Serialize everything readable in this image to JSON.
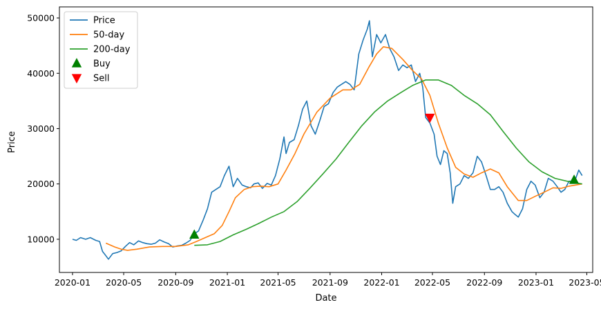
{
  "chart_data": {
    "type": "line",
    "xlabel": "Date",
    "ylabel": "Price",
    "xlim": [
      "2019-12-01",
      "2023-05-15"
    ],
    "ylim": [
      4000,
      52000
    ],
    "x_ticks": [
      "2020-01",
      "2020-05",
      "2020-09",
      "2021-01",
      "2021-05",
      "2021-09",
      "2022-01",
      "2022-05",
      "2022-09",
      "2023-01",
      "2023-05"
    ],
    "y_ticks": [
      10000,
      20000,
      30000,
      40000,
      50000
    ],
    "legend_position": "top-left",
    "series": [
      {
        "name": "Price",
        "color": "#1f77b4",
        "points": [
          [
            "2020-01-01",
            10000
          ],
          [
            "2020-01-10",
            9800
          ],
          [
            "2020-01-20",
            10300
          ],
          [
            "2020-02-01",
            10000
          ],
          [
            "2020-02-12",
            10300
          ],
          [
            "2020-02-25",
            9800
          ],
          [
            "2020-03-05",
            9600
          ],
          [
            "2020-03-12",
            7800
          ],
          [
            "2020-03-18",
            7200
          ],
          [
            "2020-03-26",
            6400
          ],
          [
            "2020-04-05",
            7400
          ],
          [
            "2020-04-15",
            7600
          ],
          [
            "2020-04-25",
            7900
          ],
          [
            "2020-05-05",
            8700
          ],
          [
            "2020-05-15",
            9400
          ],
          [
            "2020-05-25",
            9000
          ],
          [
            "2020-06-05",
            9700
          ],
          [
            "2020-06-15",
            9400
          ],
          [
            "2020-06-25",
            9200
          ],
          [
            "2020-07-05",
            9100
          ],
          [
            "2020-07-15",
            9300
          ],
          [
            "2020-07-25",
            9900
          ],
          [
            "2020-08-05",
            9500
          ],
          [
            "2020-08-15",
            9200
          ],
          [
            "2020-08-25",
            8600
          ],
          [
            "2020-09-05",
            8800
          ],
          [
            "2020-09-15",
            8900
          ],
          [
            "2020-09-25",
            9300
          ],
          [
            "2020-10-05",
            9800
          ],
          [
            "2020-10-15",
            11000
          ],
          [
            "2020-10-25",
            11500
          ],
          [
            "2020-11-05",
            13500
          ],
          [
            "2020-11-15",
            15500
          ],
          [
            "2020-11-25",
            18500
          ],
          [
            "2020-12-05",
            19000
          ],
          [
            "2020-12-15",
            19500
          ],
          [
            "2020-12-25",
            21500
          ],
          [
            "2021-01-05",
            23200
          ],
          [
            "2021-01-15",
            19500
          ],
          [
            "2021-01-25",
            21000
          ],
          [
            "2021-02-05",
            19800
          ],
          [
            "2021-02-15",
            19500
          ],
          [
            "2021-02-25",
            19300
          ],
          [
            "2021-03-05",
            20000
          ],
          [
            "2021-03-15",
            20200
          ],
          [
            "2021-03-25",
            19200
          ],
          [
            "2021-04-05",
            20100
          ],
          [
            "2021-04-15",
            19800
          ],
          [
            "2021-04-25",
            21500
          ],
          [
            "2021-05-05",
            24500
          ],
          [
            "2021-05-15",
            28500
          ],
          [
            "2021-05-20",
            25500
          ],
          [
            "2021-05-28",
            27500
          ],
          [
            "2021-06-08",
            28000
          ],
          [
            "2021-06-18",
            30500
          ],
          [
            "2021-06-28",
            33500
          ],
          [
            "2021-07-08",
            35000
          ],
          [
            "2021-07-18",
            30500
          ],
          [
            "2021-07-28",
            29000
          ],
          [
            "2021-08-08",
            31500
          ],
          [
            "2021-08-18",
            34000
          ],
          [
            "2021-08-28",
            34500
          ],
          [
            "2021-09-08",
            36500
          ],
          [
            "2021-09-18",
            37500
          ],
          [
            "2021-09-28",
            38000
          ],
          [
            "2021-10-08",
            38500
          ],
          [
            "2021-10-18",
            38000
          ],
          [
            "2021-10-28",
            37000
          ],
          [
            "2021-11-08",
            43500
          ],
          [
            "2021-11-18",
            46000
          ],
          [
            "2021-11-28",
            48000
          ],
          [
            "2021-12-03",
            49500
          ],
          [
            "2021-12-10",
            43000
          ],
          [
            "2021-12-20",
            47000
          ],
          [
            "2021-12-30",
            45500
          ],
          [
            "2022-01-10",
            47000
          ],
          [
            "2022-01-20",
            44500
          ],
          [
            "2022-01-30",
            43000
          ],
          [
            "2022-02-10",
            40500
          ],
          [
            "2022-02-20",
            41500
          ],
          [
            "2022-03-02",
            41000
          ],
          [
            "2022-03-12",
            41500
          ],
          [
            "2022-03-22",
            38500
          ],
          [
            "2022-04-01",
            40000
          ],
          [
            "2022-04-08",
            37500
          ],
          [
            "2022-04-15",
            32000
          ],
          [
            "2022-04-25",
            31000
          ],
          [
            "2022-05-05",
            29000
          ],
          [
            "2022-05-12",
            25000
          ],
          [
            "2022-05-20",
            23500
          ],
          [
            "2022-05-28",
            26000
          ],
          [
            "2022-06-05",
            25500
          ],
          [
            "2022-06-12",
            22000
          ],
          [
            "2022-06-18",
            16500
          ],
          [
            "2022-06-25",
            19500
          ],
          [
            "2022-07-05",
            20000
          ],
          [
            "2022-07-15",
            21500
          ],
          [
            "2022-07-25",
            21000
          ],
          [
            "2022-08-05",
            22000
          ],
          [
            "2022-08-15",
            25000
          ],
          [
            "2022-08-25",
            24000
          ],
          [
            "2022-09-05",
            21500
          ],
          [
            "2022-09-15",
            19000
          ],
          [
            "2022-09-25",
            19000
          ],
          [
            "2022-10-05",
            19500
          ],
          [
            "2022-10-15",
            18500
          ],
          [
            "2022-10-25",
            16500
          ],
          [
            "2022-11-05",
            15000
          ],
          [
            "2022-11-12",
            14500
          ],
          [
            "2022-11-20",
            14000
          ],
          [
            "2022-11-30",
            15500
          ],
          [
            "2022-12-10",
            19000
          ],
          [
            "2022-12-20",
            20500
          ],
          [
            "2022-12-30",
            19800
          ],
          [
            "2023-01-10",
            17500
          ],
          [
            "2023-01-20",
            18500
          ],
          [
            "2023-01-30",
            21000
          ],
          [
            "2023-02-10",
            20500
          ],
          [
            "2023-02-20",
            19500
          ],
          [
            "2023-03-01",
            18500
          ],
          [
            "2023-03-10",
            19000
          ],
          [
            "2023-03-20",
            20500
          ],
          [
            "2023-03-30",
            20500
          ],
          [
            "2023-04-05",
            21000
          ],
          [
            "2023-04-12",
            22500
          ],
          [
            "2023-04-20",
            21500
          ]
        ]
      },
      {
        "name": "50-day",
        "color": "#ff7f0e",
        "points": [
          [
            "2020-03-20",
            9300
          ],
          [
            "2020-04-10",
            8600
          ],
          [
            "2020-04-25",
            8200
          ],
          [
            "2020-05-10",
            8000
          ],
          [
            "2020-06-01",
            8200
          ],
          [
            "2020-07-01",
            8600
          ],
          [
            "2020-08-01",
            8700
          ],
          [
            "2020-09-01",
            8700
          ],
          [
            "2020-10-01",
            9000
          ],
          [
            "2020-10-20",
            9600
          ],
          [
            "2020-11-10",
            10300
          ],
          [
            "2020-12-01",
            11000
          ],
          [
            "2020-12-20",
            12500
          ],
          [
            "2021-01-05",
            15000
          ],
          [
            "2021-01-20",
            17500
          ],
          [
            "2021-02-10",
            19000
          ],
          [
            "2021-03-01",
            19500
          ],
          [
            "2021-03-20",
            19600
          ],
          [
            "2021-04-10",
            19500
          ],
          [
            "2021-05-01",
            20000
          ],
          [
            "2021-05-20",
            22500
          ],
          [
            "2021-06-10",
            25500
          ],
          [
            "2021-07-01",
            29000
          ],
          [
            "2021-08-01",
            33000
          ],
          [
            "2021-09-01",
            35500
          ],
          [
            "2021-10-01",
            37000
          ],
          [
            "2021-10-20",
            37000
          ],
          [
            "2021-11-10",
            38000
          ],
          [
            "2021-12-01",
            41000
          ],
          [
            "2021-12-20",
            43500
          ],
          [
            "2022-01-05",
            44800
          ],
          [
            "2022-01-25",
            44500
          ],
          [
            "2022-02-20",
            42500
          ],
          [
            "2022-03-15",
            40500
          ],
          [
            "2022-04-05",
            39000
          ],
          [
            "2022-04-25",
            36000
          ],
          [
            "2022-05-15",
            31000
          ],
          [
            "2022-06-05",
            26500
          ],
          [
            "2022-06-25",
            23000
          ],
          [
            "2022-07-15",
            21800
          ],
          [
            "2022-08-05",
            21200
          ],
          [
            "2022-08-25",
            22000
          ],
          [
            "2022-09-15",
            22700
          ],
          [
            "2022-10-05",
            22000
          ],
          [
            "2022-10-25",
            19500
          ],
          [
            "2022-11-20",
            17000
          ],
          [
            "2022-12-10",
            17000
          ],
          [
            "2022-12-31",
            17800
          ],
          [
            "2023-01-20",
            18500
          ],
          [
            "2023-02-10",
            19300
          ],
          [
            "2023-03-01",
            19200
          ],
          [
            "2023-03-20",
            19600
          ],
          [
            "2023-04-20",
            20000
          ]
        ]
      },
      {
        "name": "200-day",
        "color": "#2ca02c",
        "points": [
          [
            "2020-10-15",
            8900
          ],
          [
            "2020-11-15",
            9000
          ],
          [
            "2020-12-15",
            9600
          ],
          [
            "2021-01-15",
            10800
          ],
          [
            "2021-02-15",
            11800
          ],
          [
            "2021-03-15",
            12800
          ],
          [
            "2021-04-15",
            14000
          ],
          [
            "2021-05-15",
            15000
          ],
          [
            "2021-06-15",
            16800
          ],
          [
            "2021-07-15",
            19200
          ],
          [
            "2021-08-15",
            21800
          ],
          [
            "2021-09-15",
            24500
          ],
          [
            "2021-10-15",
            27500
          ],
          [
            "2021-11-15",
            30500
          ],
          [
            "2021-12-15",
            33000
          ],
          [
            "2022-01-15",
            35000
          ],
          [
            "2022-02-15",
            36500
          ],
          [
            "2022-03-15",
            37800
          ],
          [
            "2022-04-15",
            38800
          ],
          [
            "2022-05-15",
            38800
          ],
          [
            "2022-06-15",
            37800
          ],
          [
            "2022-07-15",
            36000
          ],
          [
            "2022-08-15",
            34500
          ],
          [
            "2022-09-15",
            32500
          ],
          [
            "2022-10-15",
            29500
          ],
          [
            "2022-11-15",
            26500
          ],
          [
            "2022-12-15",
            24000
          ],
          [
            "2023-01-15",
            22200
          ],
          [
            "2023-02-15",
            21000
          ],
          [
            "2023-03-15",
            20500
          ],
          [
            "2023-04-20",
            20000
          ]
        ]
      }
    ],
    "markers": [
      {
        "name": "Buy",
        "color": "#008000",
        "shape": "triangle-up",
        "points": [
          [
            "2020-10-15",
            10800
          ],
          [
            "2023-04-01",
            20700
          ]
        ]
      },
      {
        "name": "Sell",
        "color": "#ff0000",
        "shape": "triangle-down",
        "points": [
          [
            "2022-04-25",
            32000
          ]
        ]
      }
    ]
  }
}
